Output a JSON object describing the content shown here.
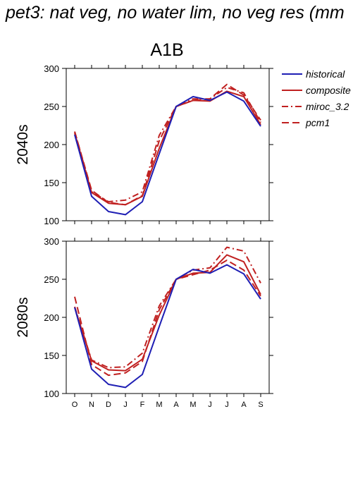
{
  "title": "pet3: nat veg, no water lim, no veg res (mm",
  "scenario": "A1B",
  "colors": {
    "historical": "#1f1fb4",
    "projection": "#c02020"
  },
  "legend": [
    {
      "name": "historical",
      "color": "#1f1fb4",
      "dash": "solid"
    },
    {
      "name": "composite",
      "color": "#c02020",
      "dash": "solid"
    },
    {
      "name": "miroc_3.2",
      "color": "#c02020",
      "dash": "dashdot"
    },
    {
      "name": "pcm1",
      "color": "#c02020",
      "dash": "dashed"
    }
  ],
  "chart_data": [
    {
      "type": "line",
      "panel_label": "2040s",
      "categories": [
        "O",
        "N",
        "D",
        "J",
        "F",
        "M",
        "A",
        "M",
        "J",
        "J",
        "A",
        "S"
      ],
      "ylim": [
        100,
        300
      ],
      "yticks": [
        100,
        150,
        200,
        250,
        300
      ],
      "series": [
        {
          "name": "historical",
          "values": [
            213,
            132,
            112,
            108,
            125,
            188,
            250,
            263,
            258,
            269,
            257,
            224
          ]
        },
        {
          "name": "composite",
          "values": [
            215,
            137,
            123,
            121,
            132,
            195,
            250,
            258,
            257,
            270,
            263,
            226
          ]
        },
        {
          "name": "miroc_3.2",
          "values": [
            217,
            138,
            125,
            127,
            138,
            212,
            250,
            260,
            260,
            275,
            268,
            229
          ]
        },
        {
          "name": "pcm1",
          "values": [
            217,
            140,
            124,
            121,
            133,
            205,
            250,
            258,
            260,
            279,
            265,
            232
          ]
        }
      ]
    },
    {
      "type": "line",
      "panel_label": "2080s",
      "categories": [
        "O",
        "N",
        "D",
        "J",
        "F",
        "M",
        "A",
        "M",
        "J",
        "J",
        "A",
        "S"
      ],
      "ylim": [
        100,
        300
      ],
      "yticks": [
        100,
        150,
        200,
        250,
        300
      ],
      "series": [
        {
          "name": "historical",
          "values": [
            213,
            132,
            112,
            108,
            125,
            188,
            250,
            263,
            258,
            269,
            257,
            224
          ]
        },
        {
          "name": "composite",
          "values": [
            213,
            143,
            131,
            130,
            145,
            203,
            250,
            258,
            259,
            282,
            273,
            230
          ]
        },
        {
          "name": "miroc_3.2",
          "values": [
            214,
            144,
            134,
            135,
            153,
            215,
            250,
            262,
            265,
            292,
            287,
            245
          ]
        },
        {
          "name": "pcm1",
          "values": [
            227,
            138,
            124,
            127,
            142,
            210,
            250,
            256,
            262,
            275,
            262,
            228
          ]
        }
      ]
    }
  ]
}
